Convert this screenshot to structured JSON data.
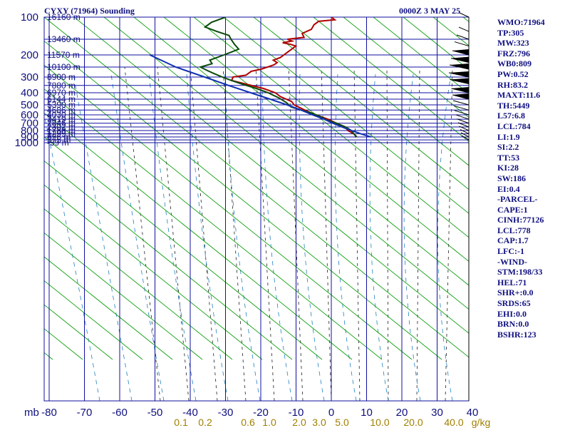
{
  "header": {
    "station": "CYXY (71964) Sounding",
    "time": "0000Z  3 MAY 25"
  },
  "colors": {
    "grid": "#1010a0",
    "dry_adiabat": "#10a010",
    "temperature": "#b00000",
    "dewpoint": "#0a4a0a",
    "parcel": "#1030b0",
    "mixing_ratio": "#202020",
    "moist_adiabat": "#2080c0",
    "text": "#101080"
  },
  "chart_data": {
    "type": "line",
    "title": "CYXY (71964) Sounding",
    "subtitle": "0000Z  3 MAY 25",
    "pressure_ticks": [
      "100",
      "200",
      "300",
      "400",
      "500",
      "600",
      "700",
      "800",
      "900",
      "1000"
    ],
    "pressure_unit": "mb",
    "temperature_ticks": [
      "-80",
      "-70",
      "-60",
      "-50",
      "-40",
      "-30",
      "-20",
      "-10",
      "0",
      "10",
      "20",
      "30",
      "40"
    ],
    "mixing_ratio_labels": [
      "0.1",
      "0.2",
      "0.6",
      "1.0",
      "2.0",
      "3.0",
      "5.0",
      "10.0",
      "20.0",
      "40.0"
    ],
    "mixing_ratio_unit": "g/kg",
    "height_labels": [
      {
        "p": 100,
        "label": "16160 m"
      },
      {
        "p": 150,
        "label": "13460 m"
      },
      {
        "p": 200,
        "label": "11570 m"
      },
      {
        "p": 250,
        "label": "10100 m"
      },
      {
        "p": 300,
        "label": "8900 m"
      },
      {
        "p": 350,
        "label": "7880 m"
      },
      {
        "p": 400,
        "label": "6970 m"
      },
      {
        "p": 450,
        "label": "6144 m"
      },
      {
        "p": 500,
        "label": "5390 m"
      },
      {
        "p": 550,
        "label": "4686 m"
      },
      {
        "p": 600,
        "label": "4030 m"
      },
      {
        "p": 650,
        "label": "3419 m"
      },
      {
        "p": 700,
        "label": "2846 m"
      },
      {
        "p": 750,
        "label": "2302 m"
      },
      {
        "p": 800,
        "label": "1788 m"
      },
      {
        "p": 850,
        "label": "1299 m"
      },
      {
        "p": 900,
        "label": "826 m"
      },
      {
        "p": 950,
        "label": "375 m"
      },
      {
        "p": 1000,
        "label": "-59 m"
      }
    ],
    "series": [
      {
        "key": "temperature",
        "points": [
          [
            100,
            -48
          ],
          [
            105,
            -46
          ],
          [
            108,
            -50
          ],
          [
            115,
            -50
          ],
          [
            125,
            -49
          ],
          [
            135,
            -50
          ],
          [
            145,
            -48
          ],
          [
            150,
            -52
          ],
          [
            155,
            -50
          ],
          [
            160,
            -52
          ],
          [
            165,
            -49
          ],
          [
            170,
            -47
          ],
          [
            180,
            -47
          ],
          [
            190,
            -47
          ],
          [
            200,
            -47
          ],
          [
            210,
            -47
          ],
          [
            220,
            -48
          ],
          [
            230,
            -46
          ],
          [
            240,
            -46
          ],
          [
            250,
            -47
          ],
          [
            260,
            -48
          ],
          [
            270,
            -50
          ],
          [
            280,
            -50
          ],
          [
            290,
            -50
          ],
          [
            300,
            -53
          ],
          [
            320,
            -52
          ],
          [
            340,
            -47
          ],
          [
            370,
            -40
          ],
          [
            400,
            -35
          ],
          [
            430,
            -32
          ],
          [
            470,
            -27
          ],
          [
            500,
            -25
          ],
          [
            550,
            -20
          ],
          [
            580,
            -17
          ],
          [
            610,
            -14
          ],
          [
            650,
            -10
          ],
          [
            700,
            -6
          ],
          [
            750,
            -2
          ],
          [
            800,
            0
          ],
          [
            850,
            3
          ],
          [
            900,
            5
          ]
        ]
      },
      {
        "key": "dewpoint",
        "points": [
          [
            100,
            -78
          ],
          [
            110,
            -80
          ],
          [
            120,
            -80
          ],
          [
            130,
            -75
          ],
          [
            140,
            -70
          ],
          [
            150,
            -68
          ],
          [
            165,
            -65
          ],
          [
            180,
            -62
          ],
          [
            190,
            -63
          ],
          [
            200,
            -64
          ],
          [
            210,
            -65
          ],
          [
            220,
            -66
          ],
          [
            235,
            -64
          ],
          [
            250,
            -66
          ],
          [
            265,
            -63
          ],
          [
            280,
            -60
          ],
          [
            295,
            -57
          ],
          [
            300,
            -56
          ],
          [
            320,
            -52
          ],
          [
            340,
            -48
          ],
          [
            370,
            -42
          ],
          [
            400,
            -37
          ],
          [
            440,
            -32
          ],
          [
            480,
            -28
          ],
          [
            520,
            -25
          ],
          [
            550,
            -21
          ],
          [
            580,
            -17
          ],
          [
            620,
            -13
          ],
          [
            660,
            -10
          ],
          [
            700,
            -6
          ],
          [
            750,
            -2
          ],
          [
            800,
            1
          ],
          [
            850,
            3
          ],
          [
            900,
            5
          ]
        ]
      },
      {
        "key": "parcel",
        "points": [
          [
            200,
            -85
          ],
          [
            250,
            -73
          ],
          [
            300,
            -61
          ],
          [
            350,
            -51
          ],
          [
            400,
            -42
          ],
          [
            450,
            -34
          ],
          [
            500,
            -27
          ],
          [
            550,
            -21
          ],
          [
            600,
            -16
          ],
          [
            650,
            -11
          ],
          [
            700,
            -7
          ],
          [
            750,
            -3
          ],
          [
            800,
            1
          ],
          [
            850,
            5
          ],
          [
            900,
            9
          ]
        ]
      }
    ],
    "wind_speed_profile": [
      [
        100,
        10
      ],
      [
        130,
        12
      ],
      [
        150,
        18
      ],
      [
        170,
        24
      ],
      [
        200,
        30
      ],
      [
        230,
        34
      ],
      [
        260,
        38
      ],
      [
        300,
        40
      ],
      [
        340,
        37
      ],
      [
        400,
        33
      ],
      [
        450,
        30
      ],
      [
        500,
        28
      ],
      [
        550,
        26
      ],
      [
        600,
        24
      ],
      [
        650,
        20
      ],
      [
        700,
        17
      ],
      [
        750,
        14
      ],
      [
        800,
        11
      ],
      [
        850,
        8
      ],
      [
        900,
        6
      ],
      [
        950,
        4
      ]
    ],
    "yrange_mb": [
      100,
      1050
    ],
    "xrange_c": [
      -80,
      40
    ],
    "legend": "none",
    "grid": true
  },
  "indices": [
    "WMO:71964",
    "TP:305",
    "MW:323",
    "FRZ:796",
    "WB0:809",
    "PW:0.52",
    "RH:83.2",
    "MAXT:11.6",
    "TH:5449",
    "L57:6.8",
    "LCL:784",
    "LI:1.9",
    "SI:2.2",
    "TT:53",
    "KI:28",
    "SW:186",
    "EI:0.4",
    "-PARCEL-",
    "CAPE:1",
    "CINH:77126",
    "LCL:778",
    "CAP:1.7",
    "LFC:-1",
    "-WIND-",
    "STM:198/33",
    "HEL:71",
    "SHR+:0.0",
    "SRDS:65",
    "EHI:0.0",
    "BRN:0.0",
    "BSHR:123"
  ]
}
